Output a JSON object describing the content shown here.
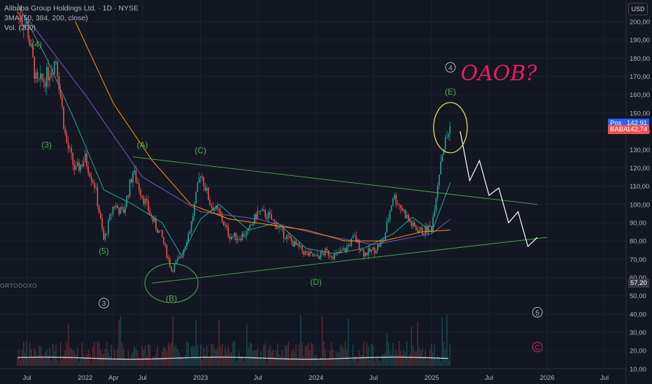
{
  "header": {
    "title": "Alibaba Group Holdings Ltd. · 1D · NYSE",
    "sma": "3MA (50, 384, 200, close)",
    "volume": "Vol. (200)",
    "currency": "USD",
    "watermark": "ORTODOXO"
  },
  "colors": {
    "background": "#131722",
    "candle_up": "#26a69a",
    "candle_down": "#ef5350",
    "ma50": "#26a69a",
    "ma384": "#7e57c2",
    "ma200": "#ff9800",
    "pos_tag": "#2962ff",
    "baba_tag": "#ef5350",
    "annotation_green": "#4caf50",
    "annotation_white": "#ffffff",
    "annotation_yellow": "#e5e054",
    "annotation_pink": "#e91e63"
  },
  "price_tags": [
    {
      "label": "Pos",
      "value": "142,91",
      "price": 142.91,
      "color": "#2962ff"
    },
    {
      "label": "BABA",
      "value": "142,74",
      "price": 142.74,
      "color": "#ef5350"
    },
    {
      "label": "",
      "value": "57,20",
      "price": 57.2,
      "color": "#363a45"
    }
  ],
  "chart_data": {
    "type": "line",
    "title": "Alibaba Group Holdings Ltd. · 1D · NYSE",
    "x_ticks": [
      "Jul",
      "2022",
      "Apr",
      "Jul",
      "2023",
      "Jul",
      "2024",
      "Jul",
      "2025",
      "Jul",
      "2026",
      "Jul"
    ],
    "x_tick_dates": [
      "2021-07-01",
      "2022-01-01",
      "2022-04-01",
      "2022-07-01",
      "2023-01-01",
      "2023-07-01",
      "2024-01-01",
      "2024-07-01",
      "2025-01-01",
      "2025-07-01",
      "2026-01-01",
      "2026-07-01"
    ],
    "y_ticks": [
      "200,00",
      "190,00",
      "180,00",
      "170,00",
      "160,00",
      "150,00",
      "140,00",
      "130,00",
      "120,00",
      "110,00",
      "100,00",
      "90,00",
      "80,00",
      "70,00",
      "60,00",
      "50,00",
      "40,00",
      "30,00",
      "20,00",
      "10,00"
    ],
    "ylim": [
      10,
      200
    ],
    "series": [
      {
        "name": "BABA",
        "points": [
          [
            "2021-06-01",
            205
          ],
          [
            "2021-07-01",
            198
          ],
          [
            "2021-08-01",
            165
          ],
          [
            "2021-09-01",
            170
          ],
          [
            "2021-10-01",
            180
          ],
          [
            "2021-11-01",
            135
          ],
          [
            "2021-12-01",
            118
          ],
          [
            "2022-01-01",
            125
          ],
          [
            "2022-02-01",
            110
          ],
          [
            "2022-03-01",
            80
          ],
          [
            "2022-04-01",
            100
          ],
          [
            "2022-05-01",
            95
          ],
          [
            "2022-06-01",
            118
          ],
          [
            "2022-07-01",
            105
          ],
          [
            "2022-08-01",
            92
          ],
          [
            "2022-09-01",
            82
          ],
          [
            "2022-10-01",
            64
          ],
          [
            "2022-11-01",
            72
          ],
          [
            "2022-12-01",
            88
          ],
          [
            "2023-01-01",
            118
          ],
          [
            "2023-02-01",
            100
          ],
          [
            "2023-03-01",
            95
          ],
          [
            "2023-04-01",
            83
          ],
          [
            "2023-05-01",
            82
          ],
          [
            "2023-06-01",
            85
          ],
          [
            "2023-07-01",
            96
          ],
          [
            "2023-08-01",
            94
          ],
          [
            "2023-09-01",
            88
          ],
          [
            "2023-10-01",
            82
          ],
          [
            "2023-11-01",
            77
          ],
          [
            "2023-12-01",
            73
          ],
          [
            "2024-01-01",
            71
          ],
          [
            "2024-02-01",
            74
          ],
          [
            "2024-03-01",
            72
          ],
          [
            "2024-04-01",
            75
          ],
          [
            "2024-05-01",
            82
          ],
          [
            "2024-06-01",
            73
          ],
          [
            "2024-07-01",
            75
          ],
          [
            "2024-08-01",
            80
          ],
          [
            "2024-09-01",
            105
          ],
          [
            "2024-10-01",
            97
          ],
          [
            "2024-11-01",
            88
          ],
          [
            "2024-12-01",
            85
          ],
          [
            "2025-01-01",
            88
          ],
          [
            "2025-02-01",
            128
          ],
          [
            "2025-03-01",
            142.74
          ]
        ]
      },
      {
        "name": "MA 50",
        "points": [
          [
            "2021-06-01",
            210
          ],
          [
            "2021-09-01",
            180
          ],
          [
            "2021-12-01",
            145
          ],
          [
            "2022-03-01",
            108
          ],
          [
            "2022-06-01",
            100
          ],
          [
            "2022-09-01",
            90
          ],
          [
            "2022-11-01",
            72
          ],
          [
            "2023-01-01",
            92
          ],
          [
            "2023-03-01",
            100
          ],
          [
            "2023-06-01",
            86
          ],
          [
            "2023-09-01",
            90
          ],
          [
            "2023-12-01",
            76
          ],
          [
            "2024-03-01",
            73
          ],
          [
            "2024-06-01",
            76
          ],
          [
            "2024-09-01",
            84
          ],
          [
            "2024-11-01",
            93
          ],
          [
            "2025-01-01",
            85
          ],
          [
            "2025-03-01",
            112
          ]
        ]
      },
      {
        "name": "MA 384",
        "points": [
          [
            "2021-07-01",
            202
          ],
          [
            "2022-01-01",
            160
          ],
          [
            "2022-07-01",
            115
          ],
          [
            "2023-01-01",
            96
          ],
          [
            "2023-07-01",
            92
          ],
          [
            "2024-01-01",
            84
          ],
          [
            "2024-07-01",
            78
          ],
          [
            "2025-01-01",
            84
          ],
          [
            "2025-03-01",
            92
          ]
        ]
      },
      {
        "name": "MA 200",
        "points": [
          [
            "2021-12-01",
            200
          ],
          [
            "2022-04-01",
            155
          ],
          [
            "2022-08-01",
            124
          ],
          [
            "2022-12-01",
            100
          ],
          [
            "2023-04-01",
            92
          ],
          [
            "2023-08-01",
            89
          ],
          [
            "2023-12-01",
            86
          ],
          [
            "2024-04-01",
            80
          ],
          [
            "2024-08-01",
            80
          ],
          [
            "2024-12-01",
            85
          ],
          [
            "2025-03-01",
            86
          ]
        ]
      }
    ],
    "annotations": {
      "wave_labels": [
        {
          "text": "(4)",
          "date": "2021-08-01",
          "price": 186,
          "color": "#4caf50"
        },
        {
          "text": "(3)",
          "date": "2021-09-01",
          "price": 131,
          "color": "#4caf50"
        },
        {
          "text": "(5)",
          "date": "2022-03-01",
          "price": 73,
          "color": "#4caf50"
        },
        {
          "text": "(A)",
          "date": "2022-07-01",
          "price": 131,
          "color": "#4caf50"
        },
        {
          "text": "(B)",
          "date": "2022-10-01",
          "price": 47,
          "color": "#4caf50"
        },
        {
          "text": "(C)",
          "date": "2023-01-01",
          "price": 128,
          "color": "#4caf50"
        },
        {
          "text": "(D)",
          "date": "2024-01-01",
          "price": 56,
          "color": "#4caf50"
        },
        {
          "text": "(E)",
          "date": "2025-03-01",
          "price": 160,
          "color": "#4caf50"
        }
      ],
      "circled_labels": [
        {
          "text": "3",
          "date": "2022-03-01",
          "price": 46,
          "color": "#b2b5be"
        },
        {
          "text": "4",
          "date": "2025-03-01",
          "price": 175,
          "color": "#b2b5be"
        },
        {
          "text": "5",
          "date": "2025-12-01",
          "price": 41,
          "color": "#b2b5be"
        },
        {
          "text": "C",
          "date": "2025-12-01",
          "price": 22,
          "color": "#e91e63"
        }
      ],
      "handwriting": "OAOB?",
      "trendlines": [
        {
          "from": [
            "2022-06-01",
            126
          ],
          "to": [
            "2025-12-01",
            100
          ],
          "color": "#4caf50"
        },
        {
          "from": [
            "2022-08-01",
            57
          ],
          "to": [
            "2026-01-01",
            82
          ],
          "color": "#4caf50"
        }
      ],
      "projection": [
        [
          "2025-04-01",
          140
        ],
        [
          "2025-05-01",
          113
        ],
        [
          "2025-06-01",
          124
        ],
        [
          "2025-07-01",
          105
        ],
        [
          "2025-08-01",
          109
        ],
        [
          "2025-09-01",
          90
        ],
        [
          "2025-10-01",
          96
        ],
        [
          "2025-11-01",
          77
        ],
        [
          "2025-12-01",
          82
        ]
      ]
    }
  }
}
